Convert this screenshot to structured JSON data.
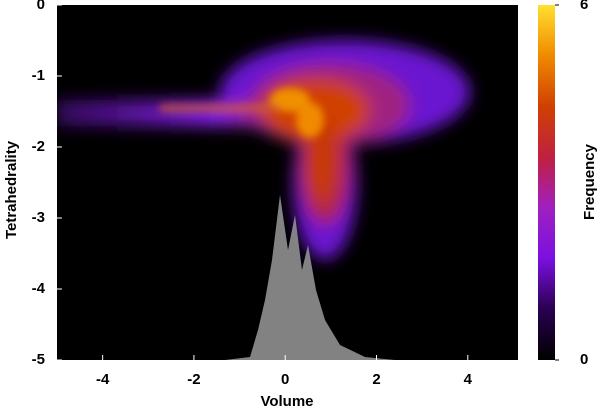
{
  "chart_data": {
    "type": "heatmap",
    "xlabel": "Volume",
    "ylabel": "Tetrahedrality",
    "colorbar_label": "Frequency",
    "xlim": [
      -5,
      5.1
    ],
    "xticks": [
      -4,
      -2,
      0,
      2,
      4
    ],
    "ylim": [
      -5,
      0
    ],
    "yticks": [
      -5,
      -4,
      -3,
      -2,
      -1,
      0
    ],
    "clim": [
      0,
      6
    ],
    "cticks": [
      0,
      6
    ],
    "colorscale": [
      "#000000",
      "#2a0050",
      "#7a10e0",
      "#a020c0",
      "#c02040",
      "#d04000",
      "#f08a00",
      "#ffe030"
    ]
  }
}
